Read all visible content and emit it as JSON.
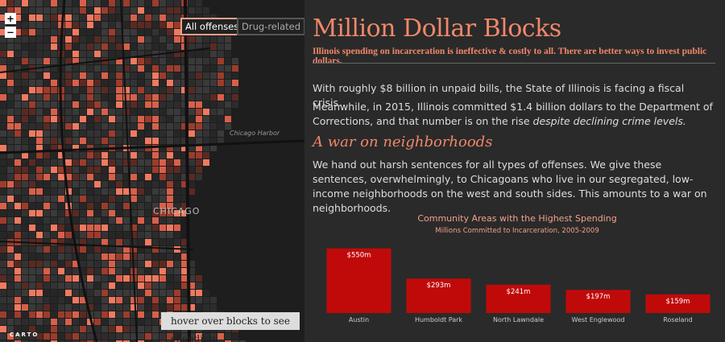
{
  "map": {
    "zoom_in": "+",
    "zoom_out": "−",
    "filters": [
      "All offenses",
      "Drug-related"
    ],
    "labels": [
      "Chicago Harbor",
      "CHICAGO"
    ],
    "hint": "hover over blocks to see spending",
    "attribution": "CARTO"
  },
  "article": {
    "title": "Million Dollar Blocks",
    "subtitle": "Illinois spending on incarceration is ineffective & costly to all. There are better ways to invest public dollars.",
    "paragraphs": [
      {
        "text": "With roughly $8 billion in unpaid bills, the State of Illinois is facing a fiscal crisis."
      },
      {
        "text": "Meanwhile, in 2015, Illinois committed $1.4 billion dollars to the Department of Corrections, and that number is on the rise",
        "emphasis": "despite declining crime levels."
      }
    ],
    "section_heading": "A war on neighborhoods",
    "section_text": "We hand out harsh sentences for all types of offenses. We give these sentences, overwhelmingly, to Chicagoans who live in our segregated, low-income neighborhoods on the west and south sides. This amounts to a war on neighborhoods."
  },
  "chart_data": {
    "type": "bar",
    "title": "Community Areas with the Highest Spending",
    "subtitle": "Millions Committed to Incarceration, 2005-2009",
    "categories": [
      "Austin",
      "Humboldt Park",
      "North Lawndale",
      "West Englewood",
      "Roseland"
    ],
    "values": [
      550,
      293,
      241,
      197,
      159
    ],
    "value_labels": [
      "$550m",
      "$293m",
      "$241m",
      "$197m",
      "$159m"
    ],
    "color": "#c00a0a"
  }
}
